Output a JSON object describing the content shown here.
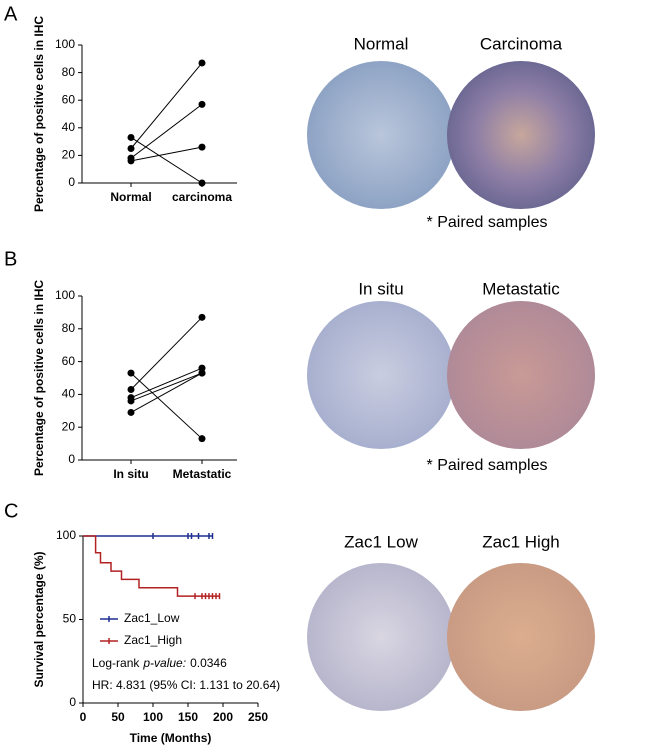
{
  "chart_data": [
    {
      "type": "line",
      "panel": "A",
      "ylabel": "Percentage of positive cells in IHC",
      "categories": [
        "Normal",
        "carcinoma"
      ],
      "color": "#000000",
      "series": [
        {
          "values": [
            25,
            87
          ]
        },
        {
          "values": [
            18,
            57
          ]
        },
        {
          "values": [
            16,
            26
          ]
        },
        {
          "values": [
            33,
            0
          ]
        }
      ],
      "ylim": [
        0,
        100
      ],
      "yticks": [
        0,
        20,
        40,
        60,
        80,
        100
      ],
      "images": [
        "Normal",
        "Carcinoma"
      ],
      "note": "* Paired samples"
    },
    {
      "type": "line",
      "panel": "B",
      "ylabel": "Percentage of positive cells in IHC",
      "categories": [
        "In situ",
        "Metastatic"
      ],
      "color": "#000000",
      "series": [
        {
          "values": [
            43,
            87
          ]
        },
        {
          "values": [
            53,
            13
          ]
        },
        {
          "values": [
            38,
            56
          ]
        },
        {
          "values": [
            36,
            53
          ]
        },
        {
          "values": [
            29,
            53
          ]
        }
      ],
      "ylim": [
        0,
        100
      ],
      "yticks": [
        0,
        20,
        40,
        60,
        80,
        100
      ],
      "images": [
        "In situ",
        "Metastatic"
      ],
      "note": "* Paired samples"
    },
    {
      "type": "step",
      "panel": "C",
      "ylabel": "Survival percentage (%)",
      "xlabel": "Time (Months)",
      "series": [
        {
          "name": "Zac1_Low",
          "color": "#1f2f8f",
          "x": [
            0,
            185
          ],
          "values": [
            100,
            100
          ],
          "censored": {
            "x": [
              100,
              150,
              155,
              165,
              180,
              185
            ],
            "values": [
              100,
              100,
              100,
              100,
              100,
              100
            ]
          }
        },
        {
          "name": "Zac1_High",
          "color": "#b22222",
          "x": [
            0,
            18,
            25,
            40,
            55,
            80,
            135,
            195
          ],
          "values": [
            100,
            90,
            84,
            79,
            74,
            69,
            64,
            64
          ],
          "censored": {
            "x": [
              160,
              170,
              175,
              180,
              185,
              190,
              195
            ],
            "values": [
              64,
              64,
              64,
              64,
              64,
              64,
              64
            ]
          }
        }
      ],
      "xlim": [
        0,
        250
      ],
      "xticks": [
        0,
        50,
        100,
        150,
        200,
        250
      ],
      "ylim": [
        0,
        100
      ],
      "yticks": [
        0,
        50,
        100
      ],
      "annotations": [
        "Log-rank",
        "p-value:",
        "0.0346",
        "HR: 4.831 (95% CI: 1.131 to 20.64)"
      ],
      "images": [
        "Zac1 Low",
        "Zac1 High"
      ]
    }
  ]
}
